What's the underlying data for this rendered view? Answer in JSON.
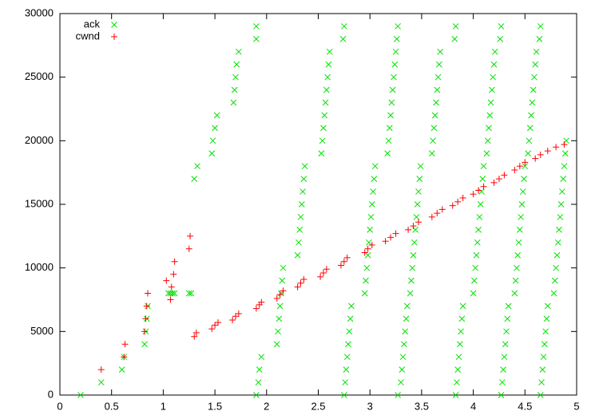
{
  "chart_data": {
    "type": "scatter",
    "legend": "top-left",
    "xlim": [
      0,
      5
    ],
    "xticks": [
      0,
      0.5,
      1,
      1.5,
      2,
      2.5,
      3,
      3.5,
      4,
      4.5,
      5
    ],
    "ylim": [
      0,
      30000
    ],
    "yticks": [
      0,
      5000,
      10000,
      15000,
      20000,
      25000,
      30000
    ],
    "series": [
      {
        "name": "ack",
        "color": "#00e000",
        "marker": "x",
        "x": [
          0.2,
          0.4,
          0.6,
          0.62,
          0.82,
          0.83,
          0.84,
          0.85,
          1.05,
          1.07,
          1.09,
          1.11,
          1.25,
          1.27,
          1.3,
          1.33,
          1.47,
          1.48,
          1.5,
          1.52,
          1.68,
          1.69,
          1.7,
          1.71,
          1.73,
          1.9,
          1.9,
          1.9,
          1.92,
          1.93,
          1.95,
          2.1,
          2.11,
          2.12,
          2.13,
          2.14,
          2.15,
          2.16,
          2.3,
          2.31,
          2.32,
          2.33,
          2.34,
          2.35,
          2.36,
          2.37,
          2.53,
          2.54,
          2.55,
          2.56,
          2.57,
          2.58,
          2.59,
          2.6,
          2.61,
          2.74,
          2.75,
          2.75,
          2.76,
          2.77,
          2.78,
          2.79,
          2.8,
          2.81,
          2.82,
          2.95,
          2.96,
          2.97,
          2.98,
          2.99,
          3.0,
          3.01,
          3.02,
          3.03,
          3.04,
          3.05,
          3.17,
          3.18,
          3.19,
          3.2,
          3.21,
          3.22,
          3.23,
          3.24,
          3.25,
          3.26,
          3.27,
          3.27,
          3.3,
          3.31,
          3.32,
          3.33,
          3.34,
          3.35,
          3.36,
          3.39,
          3.4,
          3.41,
          3.42,
          3.43,
          3.44,
          3.45,
          3.46,
          3.47,
          3.48,
          3.49,
          3.6,
          3.61,
          3.62,
          3.63,
          3.64,
          3.65,
          3.66,
          3.67,
          3.68,
          3.82,
          3.83,
          3.83,
          3.84,
          3.85,
          3.86,
          3.87,
          3.88,
          3.89,
          3.9,
          4.0,
          4.01,
          4.02,
          4.03,
          4.04,
          4.05,
          4.06,
          4.07,
          4.08,
          4.09,
          4.1,
          4.13,
          4.14,
          4.15,
          4.16,
          4.17,
          4.18,
          4.19,
          4.2,
          4.21,
          4.26,
          4.27,
          4.27,
          4.28,
          4.29,
          4.3,
          4.31,
          4.32,
          4.33,
          4.34,
          4.4,
          4.41,
          4.42,
          4.43,
          4.44,
          4.45,
          4.46,
          4.47,
          4.48,
          4.49,
          4.5,
          4.53,
          4.54,
          4.55,
          4.56,
          4.57,
          4.58,
          4.59,
          4.6,
          4.61,
          4.64,
          4.65,
          4.65,
          4.66,
          4.67,
          4.68,
          4.69,
          4.7,
          4.71,
          4.72,
          4.78,
          4.79,
          4.8,
          4.81,
          4.82,
          4.83,
          4.84,
          4.85,
          4.86,
          4.87,
          4.88,
          4.89,
          4.9
        ],
        "values": [
          0,
          1000,
          2000,
          3000,
          4000,
          5000,
          6000,
          7000,
          8000,
          8000,
          8000,
          8000,
          8000,
          8000,
          17000,
          18000,
          19000,
          20000,
          21000,
          22000,
          23000,
          24000,
          25000,
          26000,
          27000,
          28000,
          29000,
          0,
          1000,
          2000,
          3000,
          4000,
          5000,
          6000,
          7000,
          8000,
          9000,
          10000,
          11000,
          12000,
          13000,
          14000,
          15000,
          16000,
          17000,
          18000,
          19000,
          20000,
          21000,
          22000,
          23000,
          24000,
          25000,
          26000,
          27000,
          28000,
          29000,
          0,
          1000,
          2000,
          3000,
          4000,
          5000,
          6000,
          7000,
          8000,
          9000,
          10000,
          11000,
          12000,
          13000,
          14000,
          15000,
          16000,
          17000,
          18000,
          19000,
          20000,
          21000,
          22000,
          23000,
          24000,
          25000,
          26000,
          27000,
          28000,
          29000,
          0,
          1000,
          2000,
          3000,
          4000,
          5000,
          6000,
          7000,
          8000,
          9000,
          10000,
          11000,
          12000,
          13000,
          14000,
          15000,
          16000,
          17000,
          18000,
          19000,
          20000,
          21000,
          22000,
          23000,
          24000,
          25000,
          26000,
          27000,
          28000,
          29000,
          0,
          1000,
          2000,
          3000,
          4000,
          5000,
          6000,
          7000,
          8000,
          9000,
          10000,
          11000,
          12000,
          13000,
          14000,
          15000,
          16000,
          17000,
          18000,
          19000,
          20000,
          21000,
          22000,
          23000,
          24000,
          25000,
          26000,
          27000,
          28000,
          29000,
          0,
          1000,
          2000,
          3000,
          4000,
          5000,
          6000,
          7000,
          8000,
          9000,
          10000,
          11000,
          12000,
          13000,
          14000,
          15000,
          16000,
          17000,
          18000,
          19000,
          20000,
          21000,
          22000,
          23000,
          24000,
          25000,
          26000,
          27000,
          28000,
          29000,
          0,
          1000,
          2000,
          3000,
          4000,
          5000,
          6000,
          7000,
          8000,
          9000,
          10000,
          11000,
          12000,
          13000,
          14000,
          15000,
          16000,
          17000,
          18000,
          19000,
          20000
        ]
      },
      {
        "name": "cwnd",
        "color": "#ff0000",
        "marker": "+",
        "x": [
          0.4,
          0.62,
          0.63,
          0.82,
          0.83,
          0.84,
          0.85,
          1.03,
          1.07,
          1.08,
          1.1,
          1.11,
          1.25,
          1.26,
          1.3,
          1.32,
          1.47,
          1.5,
          1.53,
          1.67,
          1.7,
          1.73,
          1.9,
          1.93,
          1.95,
          2.1,
          2.13,
          2.16,
          2.3,
          2.33,
          2.36,
          2.52,
          2.55,
          2.58,
          2.72,
          2.75,
          2.78,
          2.95,
          2.98,
          3.02,
          3.15,
          3.2,
          3.25,
          3.37,
          3.42,
          3.47,
          3.6,
          3.65,
          3.7,
          3.8,
          3.85,
          3.9,
          4.0,
          4.05,
          4.1,
          4.2,
          4.25,
          4.3,
          4.4,
          4.45,
          4.5,
          4.6,
          4.65,
          4.72,
          4.8,
          4.88
        ],
        "values": [
          2000,
          3000,
          4000,
          5000,
          6000,
          7000,
          8000,
          9000,
          7500,
          8500,
          9500,
          10500,
          11500,
          12500,
          4600,
          4900,
          5200,
          5500,
          5700,
          5900,
          6200,
          6400,
          6800,
          7100,
          7300,
          7600,
          7900,
          8200,
          8500,
          8800,
          9100,
          9300,
          9600,
          9900,
          10200,
          10500,
          10800,
          11200,
          11500,
          11800,
          12100,
          12400,
          12700,
          13000,
          13300,
          13600,
          14000,
          14300,
          14600,
          14900,
          15200,
          15500,
          15800,
          16100,
          16400,
          16700,
          17000,
          17300,
          17700,
          18000,
          18300,
          18600,
          18900,
          19200,
          19500,
          19700
        ]
      }
    ]
  }
}
